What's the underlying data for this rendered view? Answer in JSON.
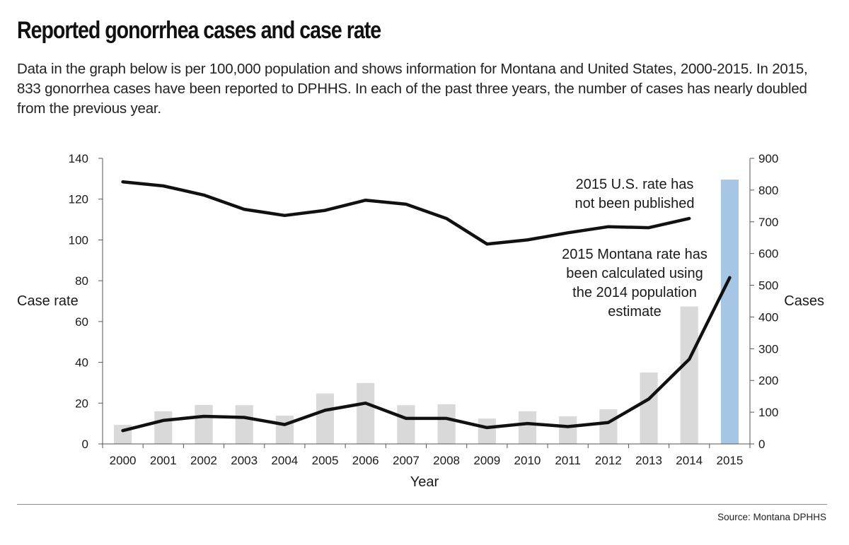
{
  "header": {
    "title": "Reported gonorrhea cases and case rate",
    "subtitle": "Data in the graph below is per 100,000 population and shows information for Montana and United States, 2000-2015. In 2015, 833 gonorrhea cases have been reported to DPHHS. In each of the past three years, the number of cases has nearly doubled from the previous year."
  },
  "footer": {
    "source": "Source: Montana DPHHS"
  },
  "colors": {
    "bar": "#d9d9d9",
    "bar_highlight": "#a7c6e6",
    "line": "#111111",
    "axis": "#555555"
  },
  "chart_data": {
    "type": "bar",
    "categories": [
      "2000",
      "2001",
      "2002",
      "2003",
      "2004",
      "2005",
      "2006",
      "2007",
      "2008",
      "2009",
      "2010",
      "2011",
      "2012",
      "2013",
      "2014",
      "2015"
    ],
    "xlabel": "Year",
    "ylabel": "Case rate",
    "y2label": "Cases",
    "ylim": [
      0,
      140
    ],
    "y2lim": [
      0,
      900
    ],
    "yticks": [
      0,
      20,
      40,
      60,
      80,
      100,
      120,
      140
    ],
    "y2ticks": [
      0,
      100,
      200,
      300,
      400,
      500,
      600,
      700,
      800,
      900
    ],
    "grid": false,
    "series": [
      {
        "kind": "bar",
        "axis": "right",
        "values": [
          60,
          103,
          123,
          122,
          89,
          159,
          192,
          122,
          125,
          80,
          103,
          87,
          109,
          225,
          433,
          833
        ],
        "highlight_index": 15
      },
      {
        "kind": "line",
        "axis": "left",
        "values": [
          128.5,
          126.5,
          122,
          115,
          112,
          114.5,
          119.5,
          117.5,
          110.5,
          98,
          100,
          103.5,
          106.5,
          106,
          110.5,
          null
        ]
      },
      {
        "kind": "line",
        "axis": "left",
        "values": [
          6.5,
          11.5,
          13.5,
          13,
          9.5,
          16.5,
          20,
          12.5,
          12.5,
          8,
          10,
          8.5,
          10.5,
          22,
          41.5,
          81.5
        ]
      }
    ],
    "annotations": [
      {
        "lines": [
          "2015 U.S. rate has",
          "not been published"
        ]
      },
      {
        "lines": [
          "2015 Montana rate has",
          "been calculated using",
          "the 2014 population",
          "estimate"
        ]
      }
    ]
  }
}
